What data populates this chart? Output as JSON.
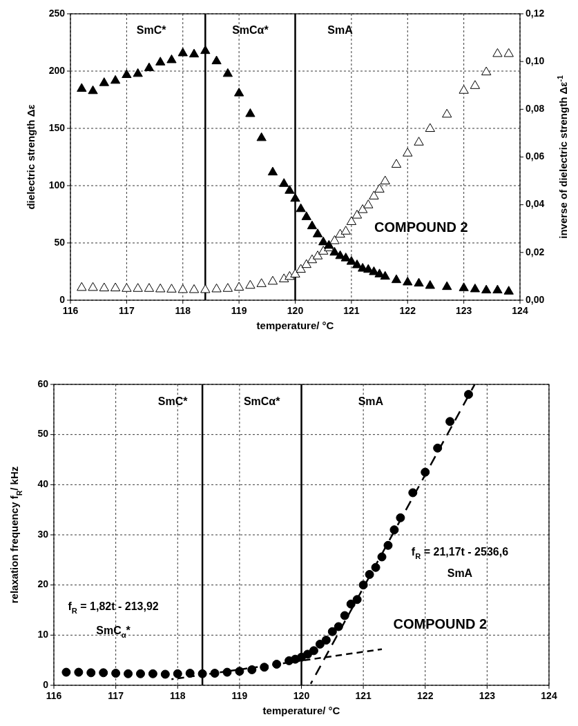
{
  "chart_data": [
    {
      "type": "scatter",
      "xlabel": "temperature/ °C",
      "ylabel": "dielectric strength Δε",
      "y2label": "inverse of dielectric strength Δε$^{-1}$",
      "xlim": [
        116,
        124
      ],
      "xticks": [
        116,
        117,
        118,
        119,
        120,
        121,
        122,
        123,
        124
      ],
      "ylim": [
        0,
        250
      ],
      "yticks": [
        0,
        50,
        100,
        150,
        200,
        250
      ],
      "y2lim": [
        0,
        0.12
      ],
      "y2ticks": [
        {
          "value": 0,
          "label": "0,00"
        },
        {
          "value": 0.02,
          "label": "0,02"
        },
        {
          "value": 0.04,
          "label": "0,04"
        },
        {
          "value": 0.06,
          "label": "0,06"
        },
        {
          "value": 0.08,
          "label": "0,08"
        },
        {
          "value": 0.1,
          "label": "0,10"
        },
        {
          "value": 0.12,
          "label": "0,12"
        }
      ],
      "grid": true,
      "series": [
        {
          "type": "scatter",
          "marker": "triangle",
          "color": "#000000",
          "x": [
            116.2,
            116.4,
            116.6,
            116.8,
            117.0,
            117.2,
            117.4,
            117.6,
            117.8,
            118.0,
            118.2,
            118.4,
            118.6,
            118.8,
            119.0,
            119.2,
            119.4,
            119.6,
            119.8,
            119.9,
            120.0,
            120.1,
            120.2,
            120.3,
            120.4,
            120.5,
            120.6,
            120.7,
            120.8,
            120.9,
            121.0,
            121.1,
            121.2,
            121.3,
            121.4,
            121.5,
            121.6,
            121.8,
            122.0,
            122.2,
            122.4,
            122.7,
            123.0,
            123.2,
            123.4,
            123.6,
            123.8
          ],
          "values": [
            185,
            183,
            190,
            192,
            197,
            198,
            203,
            208,
            210,
            216,
            215,
            218,
            209,
            198,
            181,
            163,
            142,
            112,
            102,
            96,
            89,
            80,
            73,
            65,
            58,
            51,
            48,
            42,
            39,
            37,
            34,
            31,
            28,
            27,
            25,
            23,
            21,
            18,
            16,
            15,
            13,
            12,
            11,
            10,
            9,
            9,
            8
          ]
        },
        {
          "type": "scatter",
          "marker": "triangle",
          "color": "#ffffff",
          "axis": "y2",
          "x": [
            116.2,
            116.4,
            116.6,
            116.8,
            117.0,
            117.2,
            117.4,
            117.6,
            117.8,
            118.0,
            118.2,
            118.4,
            118.6,
            118.8,
            119.0,
            119.2,
            119.4,
            119.6,
            119.8,
            119.9,
            120.0,
            120.1,
            120.2,
            120.3,
            120.4,
            120.5,
            120.6,
            120.7,
            120.8,
            120.9,
            121.0,
            121.1,
            121.2,
            121.3,
            121.4,
            121.5,
            121.6,
            121.8,
            122.0,
            122.2,
            122.4,
            122.7,
            123.0,
            123.2,
            123.4,
            123.6,
            123.8
          ],
          "values": [
            0.0054,
            0.0054,
            0.0052,
            0.0052,
            0.005,
            0.005,
            0.005,
            0.0048,
            0.0047,
            0.0045,
            0.0045,
            0.0045,
            0.0048,
            0.005,
            0.0055,
            0.0063,
            0.007,
            0.008,
            0.009,
            0.01,
            0.011,
            0.013,
            0.015,
            0.017,
            0.0186,
            0.0206,
            0.022,
            0.025,
            0.0277,
            0.029,
            0.033,
            0.0357,
            0.038,
            0.04,
            0.0437,
            0.0466,
            0.05,
            0.057,
            0.0617,
            0.0663,
            0.072,
            0.078,
            0.088,
            0.09,
            0.0957,
            0.1034,
            0.1034
          ]
        }
      ],
      "ref_lines": [
        {
          "axis": "x",
          "value": 118.4,
          "color": "#000000"
        },
        {
          "axis": "x",
          "value": 120,
          "color": "#000000"
        }
      ],
      "annotations": [
        "SmC*",
        "SmCα*",
        "SmA",
        "COMPOUND 2"
      ]
    },
    {
      "type": "scatter",
      "xlabel": "temperature/ °C",
      "ylabel": "relaxation frequency f$_{R}$/ kHz",
      "xlim": [
        116,
        124
      ],
      "xticks": [
        116,
        117,
        118,
        119,
        120,
        121,
        122,
        123,
        124
      ],
      "ylim": [
        0,
        60
      ],
      "yticks": [
        0,
        10,
        20,
        30,
        40,
        50,
        60
      ],
      "grid": true,
      "series": [
        {
          "type": "scatter",
          "marker": "circle",
          "color": "#000000",
          "x": [
            116.2,
            116.4,
            116.6,
            116.8,
            117.0,
            117.2,
            117.4,
            117.6,
            117.8,
            118.0,
            118.2,
            118.4,
            118.6,
            118.8,
            119.0,
            119.2,
            119.4,
            119.6,
            119.8,
            119.9,
            120.0,
            120.1,
            120.2,
            120.3,
            120.4,
            120.5,
            120.6,
            120.7,
            120.8,
            120.9,
            121.0,
            121.1,
            121.2,
            121.3,
            121.4,
            121.5,
            121.6,
            121.8,
            122.0,
            122.2,
            122.4,
            122.7
          ],
          "values": [
            2.6,
            2.6,
            2.5,
            2.5,
            2.4,
            2.3,
            2.3,
            2.3,
            2.2,
            2.3,
            2.4,
            2.3,
            2.4,
            2.6,
            2.8,
            3.1,
            3.6,
            4.2,
            4.9,
            5.2,
            5.6,
            6.2,
            6.9,
            8.2,
            9.0,
            10.7,
            11.7,
            13.9,
            16.2,
            17.1,
            20,
            22.1,
            23.5,
            25.6,
            27.9,
            31,
            33.4,
            38.4,
            42.5,
            47.3,
            52.6,
            58
          ]
        },
        {
          "type": "line",
          "line_style": "dashed",
          "marker": "none",
          "color": "#000000",
          "x": [
            117.9,
            121.3
          ],
          "values": [
            1.2,
            7.2
          ]
        },
        {
          "type": "line",
          "line_style": "dashed",
          "marker": "none",
          "color": "#000000",
          "x": [
            120.15,
            122.8
          ],
          "values": [
            0.3,
            60
          ]
        }
      ],
      "ref_lines": [
        {
          "axis": "x",
          "value": 118.4,
          "color": "#000000"
        },
        {
          "axis": "x",
          "value": 120,
          "color": "#000000"
        }
      ],
      "annotations": [
        "SmC*",
        "SmCα*",
        "SmA",
        "f$_{R}$ = 1,82t - 213,92",
        "SmC$_{α}$*",
        "f$_{R}$ = 21,17t - 2536,6",
        "SmA",
        "COMPOUND 2"
      ]
    }
  ]
}
